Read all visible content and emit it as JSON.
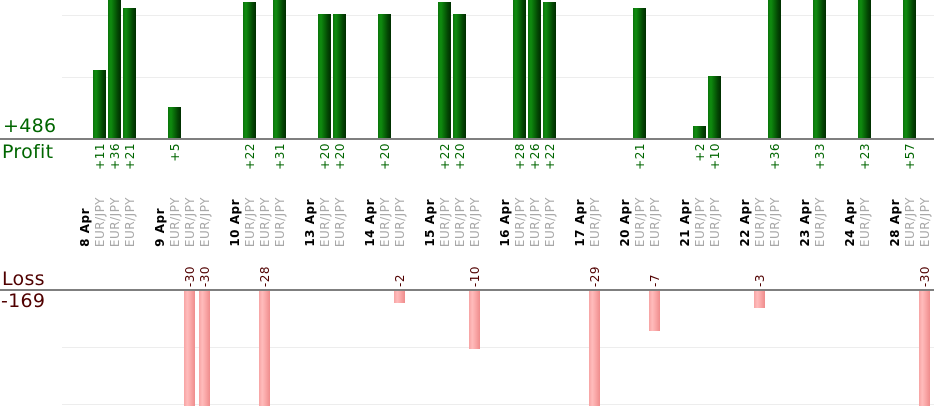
{
  "report": {
    "profit": {
      "total_label": "+486",
      "title": "Profit"
    },
    "loss": {
      "title": "Loss",
      "total_label": "-169"
    }
  },
  "chart_data": {
    "type": "bar",
    "title": "",
    "legend": "none",
    "grid": "horizontal-only",
    "profit_chart": {
      "total": 486,
      "baseline": 0,
      "gridline_values": [
        10,
        20
      ],
      "bars_clipped_above": 22,
      "bar_color": "green-gradient"
    },
    "loss_chart": {
      "total": -169,
      "baseline": 0,
      "gridline_values": [
        -10,
        -20
      ],
      "bars_clipped_below": -20,
      "bar_color": "pink-gradient"
    },
    "groups": [
      {
        "date": "8 Apr",
        "trades": [
          {
            "instrument": "EUR/JPY",
            "value": 11
          },
          {
            "instrument": "EUR/JPY",
            "value": 36
          },
          {
            "instrument": "EUR/JPY",
            "value": 21
          }
        ]
      },
      {
        "date": "9 Apr",
        "trades": [
          {
            "instrument": "EUR/JPY",
            "value": 5
          },
          {
            "instrument": "EUR/JPY",
            "value": -30
          },
          {
            "instrument": "EUR/JPY",
            "value": -30
          }
        ]
      },
      {
        "date": "10 Apr",
        "trades": [
          {
            "instrument": "EUR/JPY",
            "value": 22
          },
          {
            "instrument": "EUR/JPY",
            "value": -28
          },
          {
            "instrument": "EUR/JPY",
            "value": 31
          }
        ]
      },
      {
        "date": "13 Apr",
        "trades": [
          {
            "instrument": "EUR/JPY",
            "value": 20
          },
          {
            "instrument": "EUR/JPY",
            "value": 20
          }
        ]
      },
      {
        "date": "14 Apr",
        "trades": [
          {
            "instrument": "EUR/JPY",
            "value": 20
          },
          {
            "instrument": "EUR/JPY",
            "value": -2
          }
        ]
      },
      {
        "date": "15 Apr",
        "trades": [
          {
            "instrument": "EUR/JPY",
            "value": 22
          },
          {
            "instrument": "EUR/JPY",
            "value": 20
          },
          {
            "instrument": "EUR/JPY",
            "value": -10
          }
        ]
      },
      {
        "date": "16 Apr",
        "trades": [
          {
            "instrument": "EUR/JPY",
            "value": 28
          },
          {
            "instrument": "EUR/JPY",
            "value": 26
          },
          {
            "instrument": "EUR/JPY",
            "value": 22
          }
        ]
      },
      {
        "date": "17 Apr",
        "trades": [
          {
            "instrument": "EUR/JPY",
            "value": -29
          }
        ]
      },
      {
        "date": "20 Apr",
        "trades": [
          {
            "instrument": "EUR/JPY",
            "value": 21
          },
          {
            "instrument": "EUR/JPY",
            "value": -7
          }
        ]
      },
      {
        "date": "21 Apr",
        "trades": [
          {
            "instrument": "EUR/JPY",
            "value": 2
          },
          {
            "instrument": "EUR/JPY",
            "value": 10
          }
        ]
      },
      {
        "date": "22 Apr",
        "trades": [
          {
            "instrument": "EUR/JPY",
            "value": -3
          },
          {
            "instrument": "EUR/JPY",
            "value": 36
          }
        ]
      },
      {
        "date": "23 Apr",
        "trades": [
          {
            "instrument": "EUR/JPY",
            "value": 33
          }
        ]
      },
      {
        "date": "24 Apr",
        "trades": [
          {
            "instrument": "EUR/JPY",
            "value": 23
          }
        ]
      },
      {
        "date": "28 Apr",
        "trades": [
          {
            "instrument": "EUR/JPY",
            "value": 57
          },
          {
            "instrument": "EUR/JPY",
            "value": -30
          }
        ]
      }
    ]
  },
  "colors": {
    "profit_text": "#006600",
    "loss_text": "#500000",
    "date_text": "#000000",
    "instrument_text": "#a8a8a8",
    "axis_line": "#7f7f7f",
    "gridline": "#ededed",
    "bar_green_light": "#108c10",
    "bar_green_dark": "#002e00",
    "bar_pink_light": "#ffbcbc",
    "bar_pink_dark": "#ee8c8c"
  }
}
